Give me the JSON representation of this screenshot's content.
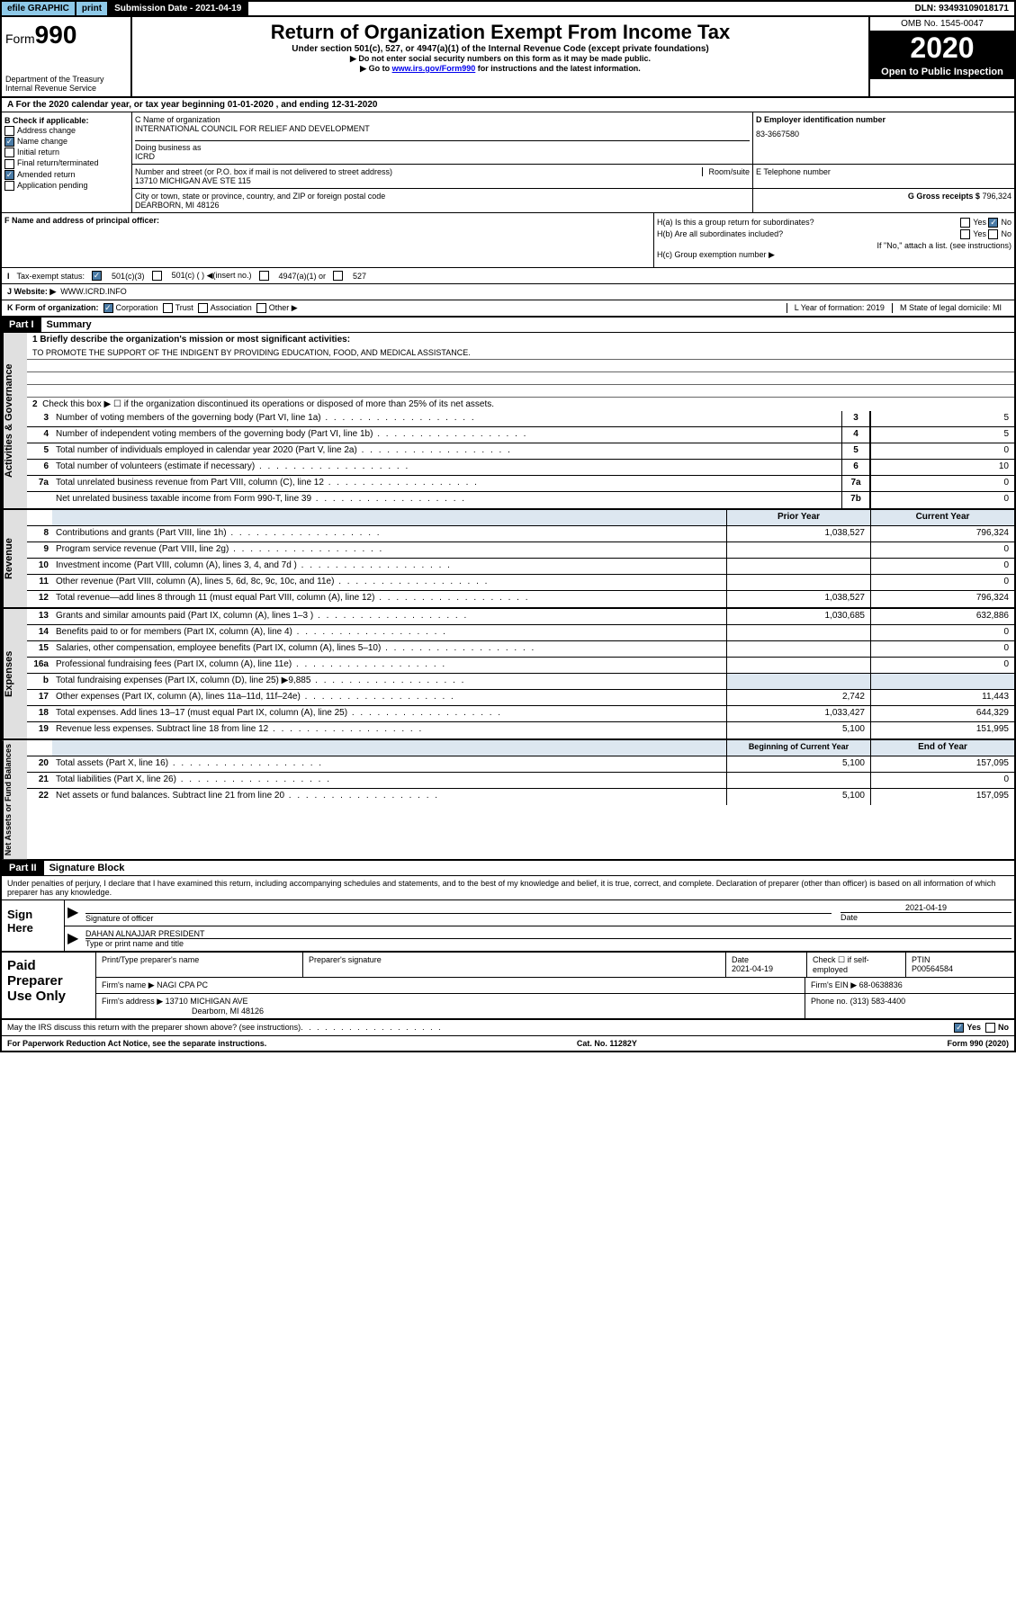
{
  "top": {
    "efile": "efile GRAPHIC",
    "print": "print",
    "subdate_label": "Submission Date - 2021-04-19",
    "dln": "DLN: 93493109018171"
  },
  "header": {
    "form_label": "Form",
    "form_num": "990",
    "dept": "Department of the Treasury Internal Revenue Service",
    "title": "Return of Organization Exempt From Income Tax",
    "subtitle": "Under section 501(c), 527, or 4947(a)(1) of the Internal Revenue Code (except private foundations)",
    "instr1": "▶ Do not enter social security numbers on this form as it may be made public.",
    "instr2_pre": "▶ Go to ",
    "instr2_link": "www.irs.gov/Form990",
    "instr2_post": " for instructions and the latest information.",
    "omb": "OMB No. 1545-0047",
    "year": "2020",
    "open": "Open to Public Inspection"
  },
  "rowA": "A   For the 2020 calendar year, or tax year beginning 01-01-2020    , and ending 12-31-2020",
  "boxB": {
    "label": "B Check if applicable:",
    "addr": "Address change",
    "name": "Name change",
    "init": "Initial return",
    "final": "Final return/terminated",
    "amend": "Amended return",
    "app": "Application pending"
  },
  "boxC": {
    "name_label": "C Name of organization",
    "name": "INTERNATIONAL COUNCIL FOR RELIEF AND DEVELOPMENT",
    "dba_label": "Doing business as",
    "dba": "ICRD",
    "addr_label": "Number and street (or P.O. box if mail is not delivered to street address)",
    "room_label": "Room/suite",
    "addr": "13710 MICHIGAN AVE STE 115",
    "city_label": "City or town, state or province, country, and ZIP or foreign postal code",
    "city": "DEARBORN, MI  48126"
  },
  "boxD": {
    "label": "D Employer identification number",
    "val": "83-3667580"
  },
  "boxE": {
    "label": "E Telephone number",
    "val": ""
  },
  "boxG": {
    "label": "G Gross receipts $",
    "val": "796,324"
  },
  "boxF": {
    "label": "F Name and address of principal officer:"
  },
  "boxH": {
    "a": "H(a)  Is this a group return for subordinates?",
    "b": "H(b)  Are all subordinates included?",
    "b_note": "If \"No,\" attach a list. (see instructions)",
    "c": "H(c)  Group exemption number ▶",
    "yes": "Yes",
    "no": "No"
  },
  "rowI": {
    "label": "Tax-exempt status:",
    "c3": "501(c)(3)",
    "c": "501(c) (  ) ◀(insert no.)",
    "a1": "4947(a)(1) or",
    "527": "527"
  },
  "rowJ": {
    "label": "J   Website: ▶",
    "val": "WWW.ICRD.INFO"
  },
  "rowK": {
    "label": "K Form of organization:",
    "corp": "Corporation",
    "trust": "Trust",
    "assoc": "Association",
    "other": "Other ▶",
    "l": "L Year of formation: 2019",
    "m": "M State of legal domicile: MI"
  },
  "part1": {
    "hdr": "Part I",
    "title": "Summary"
  },
  "summary": {
    "q1": "1  Briefly describe the organization's mission or most significant activities:",
    "mission": "TO PROMOTE THE SUPPORT OF THE INDIGENT BY PROVIDING EDUCATION, FOOD, AND MEDICAL ASSISTANCE.",
    "q2": "Check this box ▶ ☐  if the organization discontinued its operations or disposed of more than 25% of its net assets.",
    "rows": [
      {
        "n": "3",
        "d": "Number of voting members of the governing body (Part VI, line 1a)",
        "box": "3",
        "v": "5"
      },
      {
        "n": "4",
        "d": "Number of independent voting members of the governing body (Part VI, line 1b)",
        "box": "4",
        "v": "5"
      },
      {
        "n": "5",
        "d": "Total number of individuals employed in calendar year 2020 (Part V, line 2a)",
        "box": "5",
        "v": "0"
      },
      {
        "n": "6",
        "d": "Total number of volunteers (estimate if necessary)",
        "box": "6",
        "v": "10"
      },
      {
        "n": "7a",
        "d": "Total unrelated business revenue from Part VIII, column (C), line 12",
        "box": "7a",
        "v": "0"
      },
      {
        "n": "",
        "d": "Net unrelated business taxable income from Form 990-T, line 39",
        "box": "7b",
        "v": "0"
      }
    ],
    "hdr_prior": "Prior Year",
    "hdr_curr": "Current Year",
    "rev": [
      {
        "n": "8",
        "d": "Contributions and grants (Part VIII, line 1h)",
        "p": "1,038,527",
        "c": "796,324"
      },
      {
        "n": "9",
        "d": "Program service revenue (Part VIII, line 2g)",
        "p": "",
        "c": "0"
      },
      {
        "n": "10",
        "d": "Investment income (Part VIII, column (A), lines 3, 4, and 7d )",
        "p": "",
        "c": "0"
      },
      {
        "n": "11",
        "d": "Other revenue (Part VIII, column (A), lines 5, 6d, 8c, 9c, 10c, and 11e)",
        "p": "",
        "c": "0"
      },
      {
        "n": "12",
        "d": "Total revenue—add lines 8 through 11 (must equal Part VIII, column (A), line 12)",
        "p": "1,038,527",
        "c": "796,324"
      }
    ],
    "exp": [
      {
        "n": "13",
        "d": "Grants and similar amounts paid (Part IX, column (A), lines 1–3 )",
        "p": "1,030,685",
        "c": "632,886"
      },
      {
        "n": "14",
        "d": "Benefits paid to or for members (Part IX, column (A), line 4)",
        "p": "",
        "c": "0"
      },
      {
        "n": "15",
        "d": "Salaries, other compensation, employee benefits (Part IX, column (A), lines 5–10)",
        "p": "",
        "c": "0"
      },
      {
        "n": "16a",
        "d": "Professional fundraising fees (Part IX, column (A), line 11e)",
        "p": "",
        "c": "0"
      },
      {
        "n": "b",
        "d": "Total fundraising expenses (Part IX, column (D), line 25) ▶9,885",
        "p": "",
        "c": "",
        "shade": true
      },
      {
        "n": "17",
        "d": "Other expenses (Part IX, column (A), lines 11a–11d, 11f–24e)",
        "p": "2,742",
        "c": "11,443"
      },
      {
        "n": "18",
        "d": "Total expenses. Add lines 13–17 (must equal Part IX, column (A), line 25)",
        "p": "1,033,427",
        "c": "644,329"
      },
      {
        "n": "19",
        "d": "Revenue less expenses. Subtract line 18 from line 12",
        "p": "5,100",
        "c": "151,995"
      }
    ],
    "hdr_beg": "Beginning of Current Year",
    "hdr_end": "End of Year",
    "net": [
      {
        "n": "20",
        "d": "Total assets (Part X, line 16)",
        "p": "5,100",
        "c": "157,095"
      },
      {
        "n": "21",
        "d": "Total liabilities (Part X, line 26)",
        "p": "",
        "c": "0"
      },
      {
        "n": "22",
        "d": "Net assets or fund balances. Subtract line 21 from line 20",
        "p": "5,100",
        "c": "157,095"
      }
    ],
    "side_gov": "Activities & Governance",
    "side_rev": "Revenue",
    "side_exp": "Expenses",
    "side_net": "Net Assets or Fund Balances"
  },
  "part2": {
    "hdr": "Part II",
    "title": "Signature Block"
  },
  "perjury": "Under penalties of perjury, I declare that I have examined this return, including accompanying schedules and statements, and to the best of my knowledge and belief, it is true, correct, and complete. Declaration of preparer (other than officer) is based on all information of which preparer has any knowledge.",
  "sign": {
    "here": "Sign Here",
    "sig_label": "Signature of officer",
    "date": "2021-04-19",
    "date_label": "Date",
    "name": "DAHAN ALNAJJAR PRESIDENT",
    "name_label": "Type or print name and title"
  },
  "paid": {
    "label": "Paid Preparer Use Only",
    "h1": "Print/Type preparer's name",
    "h2": "Preparer's signature",
    "h3": "Date",
    "h4": "Check ☐ if self-employed",
    "h5": "PTIN",
    "date": "2021-04-19",
    "ptin": "P00564584",
    "firm_label": "Firm's name    ▶",
    "firm": "NAGI CPA PC",
    "ein_label": "Firm's EIN ▶",
    "ein": "68-0638836",
    "addr_label": "Firm's address ▶",
    "addr1": "13710 MICHIGAN AVE",
    "addr2": "Dearborn, MI  48126",
    "phone_label": "Phone no.",
    "phone": "(313) 583-4400"
  },
  "discuss": "May the IRS discuss this return with the preparer shown above? (see instructions)",
  "footer": {
    "left": "For Paperwork Reduction Act Notice, see the separate instructions.",
    "mid": "Cat. No. 11282Y",
    "right": "Form 990 (2020)"
  }
}
